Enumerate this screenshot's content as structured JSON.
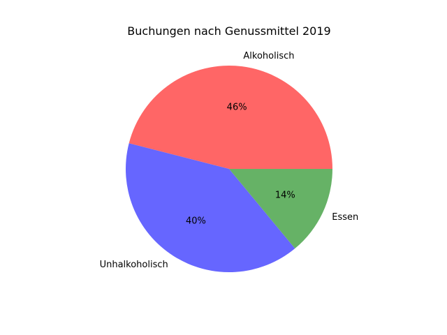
{
  "chart_data": {
    "type": "pie",
    "title": "Buchungen nach Genussmittel 2019",
    "labels": [
      "Alkoholisch",
      "Unhalkoholisch",
      "Essen"
    ],
    "values": [
      46,
      40,
      14
    ],
    "percent_labels": [
      "46%",
      "40%",
      "14%"
    ],
    "colors": [
      "#ff6666",
      "#6666ff",
      "#66b266"
    ],
    "start_angle_deg": 0,
    "direction": "counterclockwise",
    "legend": "none"
  }
}
